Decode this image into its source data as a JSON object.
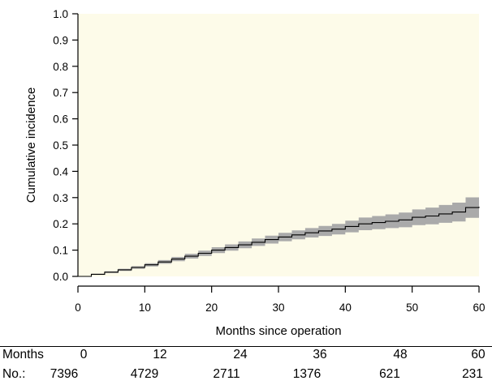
{
  "chart_data": {
    "type": "line",
    "title": "",
    "xlabel": "Months since operation",
    "ylabel": "Cumulative incidence",
    "xlim": [
      0,
      60
    ],
    "ylim": [
      0,
      1
    ],
    "xticks": [
      0,
      10,
      20,
      30,
      40,
      50,
      60
    ],
    "yticks": [
      0.0,
      0.1,
      0.2,
      0.3,
      0.4,
      0.5,
      0.6,
      0.7,
      0.8,
      0.9,
      1.0
    ],
    "ytick_labels": [
      "0.0",
      "0.1",
      "0.2",
      "0.3",
      "0.4",
      "0.5",
      "0.6",
      "0.7",
      "0.8",
      "0.9",
      "1.0"
    ],
    "grid": false,
    "legend": "none",
    "colors": {
      "panel_background": "#fdfbe9",
      "confidence_band": "#aaaaaa",
      "curve": "#000000"
    },
    "series": [
      {
        "x": [
          0,
          2,
          4,
          6,
          8,
          10,
          12,
          14,
          16,
          18,
          20,
          22,
          24,
          26,
          28,
          30,
          32,
          34,
          36,
          38,
          40,
          42,
          44,
          46,
          48,
          50,
          52,
          54,
          56,
          58,
          60
        ],
        "y": [
          0,
          0.008,
          0.016,
          0.025,
          0.034,
          0.044,
          0.055,
          0.066,
          0.077,
          0.088,
          0.1,
          0.11,
          0.12,
          0.13,
          0.14,
          0.15,
          0.158,
          0.166,
          0.173,
          0.18,
          0.19,
          0.2,
          0.205,
          0.21,
          0.215,
          0.225,
          0.23,
          0.238,
          0.245,
          0.262,
          0.265
        ],
        "ci_lower": [
          0,
          0.006,
          0.013,
          0.021,
          0.029,
          0.038,
          0.048,
          0.058,
          0.068,
          0.078,
          0.089,
          0.098,
          0.107,
          0.116,
          0.125,
          0.134,
          0.141,
          0.148,
          0.154,
          0.16,
          0.168,
          0.176,
          0.18,
          0.184,
          0.187,
          0.195,
          0.198,
          0.204,
          0.209,
          0.223,
          0.225
        ],
        "ci_upper": [
          0,
          0.01,
          0.019,
          0.029,
          0.039,
          0.05,
          0.062,
          0.074,
          0.086,
          0.098,
          0.111,
          0.122,
          0.133,
          0.144,
          0.155,
          0.166,
          0.175,
          0.184,
          0.192,
          0.2,
          0.212,
          0.224,
          0.23,
          0.236,
          0.243,
          0.255,
          0.262,
          0.272,
          0.281,
          0.301,
          0.305
        ]
      }
    ]
  },
  "risk_table": {
    "header_label": "Months",
    "count_label": "No.:",
    "months": [
      "0",
      "12",
      "24",
      "36",
      "48",
      "60"
    ],
    "counts": [
      "7396",
      "4729",
      "2711",
      "1376",
      "621",
      "231"
    ]
  }
}
